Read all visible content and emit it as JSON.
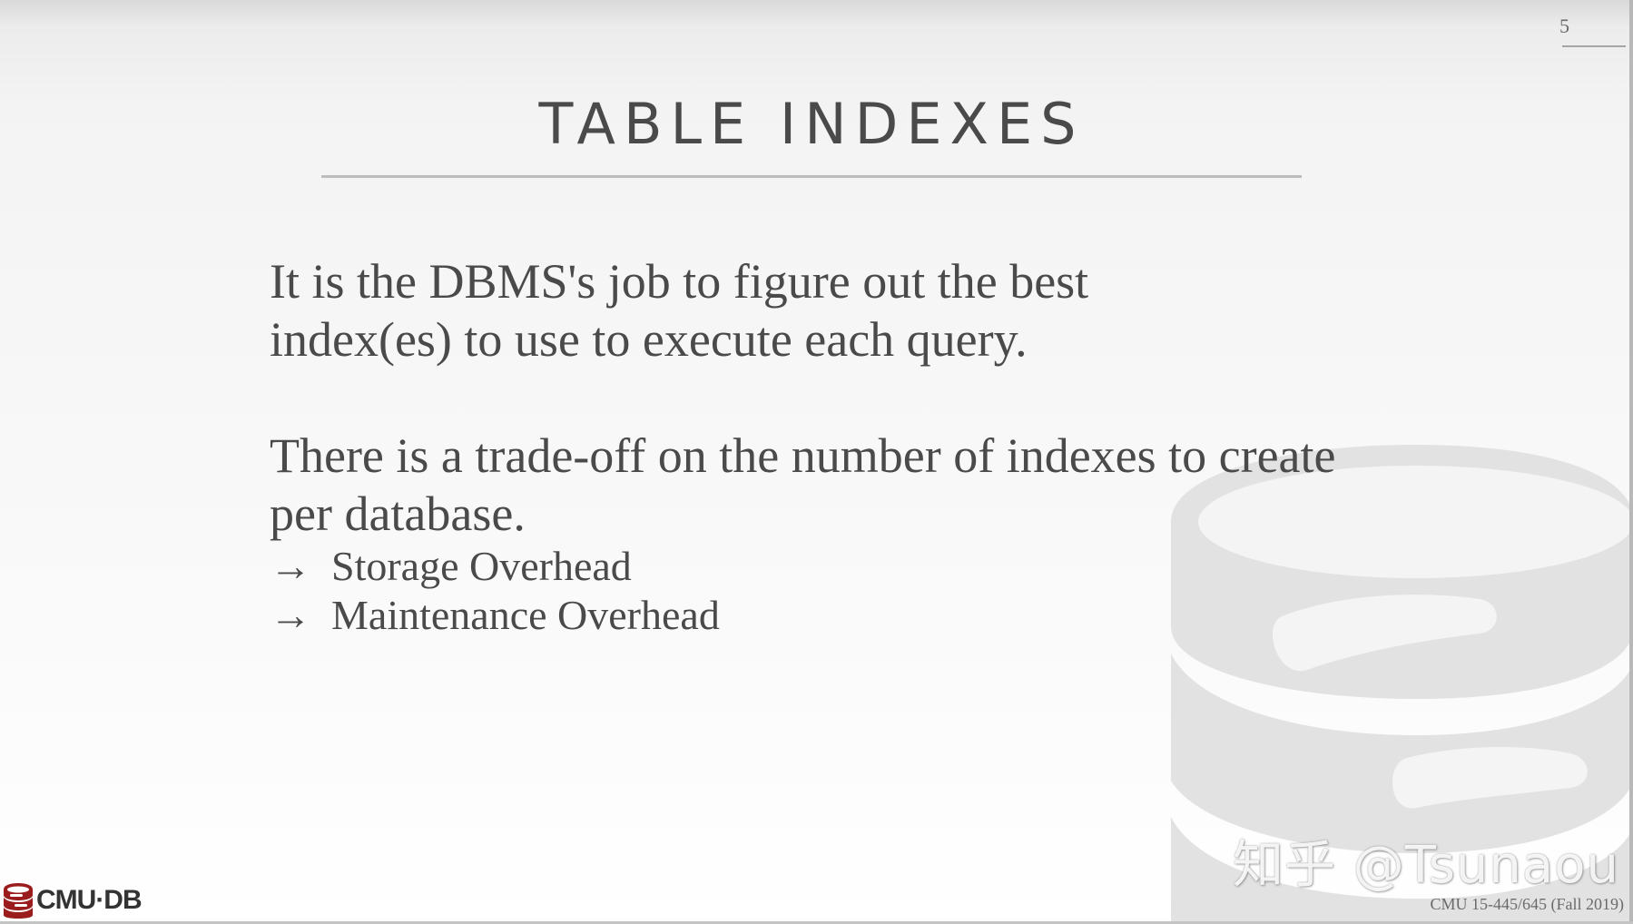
{
  "slide": {
    "page_number": "5",
    "title": "TABLE INDEXES",
    "paragraph_1": "It is the DBMS's job to figure out the best index(es) to use to execute each query.",
    "paragraph_2": "There is a trade-off on the number of indexes to create per database.",
    "bullets": [
      {
        "arrow": "→",
        "text": "Storage Overhead"
      },
      {
        "arrow": "→",
        "text": "Maintenance Overhead"
      }
    ]
  },
  "footer": {
    "logo_text": "CMU·DB",
    "course": "CMU 15-445/645 (Fall 2019)"
  },
  "watermark": {
    "text": "知乎 @Tsunaou"
  },
  "colors": {
    "text": "#4a4a4a",
    "rule": "#bdbdbd",
    "brand_red": "#9b1c1c",
    "watermark_db": "#e3e3e3"
  },
  "icons": [
    "database-watermark-icon",
    "cmu-db-logo-icon",
    "arrow-right-icon"
  ]
}
